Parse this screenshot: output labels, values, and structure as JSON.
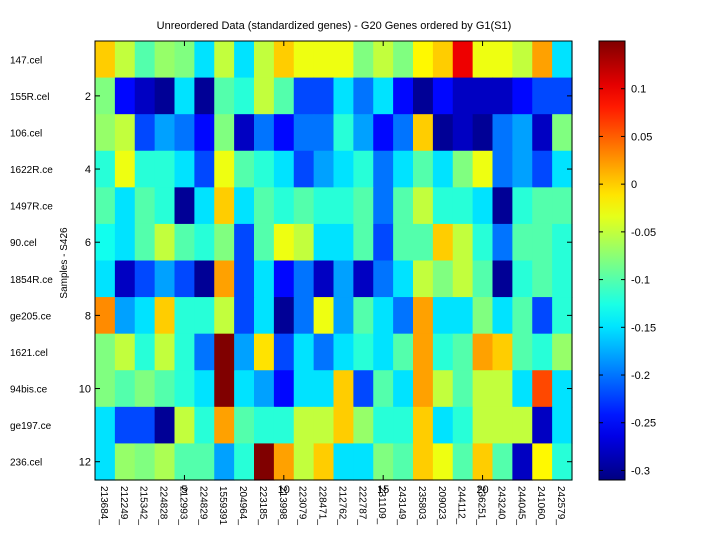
{
  "chart_data": {
    "type": "heatmap",
    "title": "Unreordered Data (standardized genes) - G20 Genes ordered by G1(S1)",
    "ylabel": "Samples - S426",
    "xlabel": "",
    "colormap": "jet",
    "clim": [
      -0.31,
      0.15
    ],
    "colorbar_ticks": [
      0.1,
      0.05,
      0,
      -0.05,
      -0.1,
      -0.15,
      -0.2,
      -0.25,
      -0.3
    ],
    "colorbar_tick_labels": [
      "0.1",
      "0.05",
      "0",
      "-0.05",
      "-0.1",
      "-0.15",
      "-0.2",
      "-0.25",
      "-0.3"
    ],
    "x_ticks": [
      5,
      10,
      15,
      20
    ],
    "x_tick_labels": [
      "5",
      "10",
      "15",
      "20"
    ],
    "y_ticks": [
      2,
      4,
      6,
      8,
      10,
      12
    ],
    "y_tick_labels": [
      "2",
      "4",
      "6",
      "8",
      "10",
      "12"
    ],
    "row_labels": [
      "147.cel",
      "155R.cel",
      "106.cel",
      "1622R.ce",
      "1497R.ce",
      "90.cel",
      "1854R.ce",
      "ge205.ce",
      "1621.cel",
      "94bis.ce",
      "ge197.ce",
      "236.cel"
    ],
    "column_labels": [
      "213684_",
      "212249_",
      "215342_",
      "224828_",
      "212993_",
      "224829_",
      "1559391",
      "204964_",
      "223185_",
      "213998_",
      "223079_",
      "228471_",
      "212762_",
      "222787_",
      "231109_",
      "243149_",
      "235803_",
      "209023_",
      "244112_",
      "236251_",
      "243240_",
      "244045_",
      "241060_",
      "242579_"
    ],
    "column_label_positions": [
      1,
      2,
      3,
      4,
      5,
      6,
      7,
      8,
      9,
      10,
      11,
      12,
      13,
      14,
      15,
      16,
      17,
      18,
      19,
      20,
      21,
      22,
      23,
      24
    ],
    "values": [
      [
        0.0,
        -0.05,
        -0.1,
        -0.07,
        -0.08,
        -0.15,
        -0.05,
        -0.15,
        -0.05,
        0.0,
        -0.03,
        -0.03,
        -0.03,
        -0.08,
        -0.05,
        -0.08,
        -0.02,
        0.0,
        0.1,
        -0.03,
        -0.03,
        -0.05,
        0.02,
        -0.15
      ],
      [
        -0.08,
        -0.25,
        -0.28,
        -0.3,
        -0.15,
        -0.3,
        -0.1,
        -0.12,
        -0.05,
        -0.1,
        -0.22,
        -0.22,
        -0.15,
        -0.2,
        -0.15,
        -0.25,
        -0.3,
        -0.25,
        -0.28,
        -0.28,
        -0.28,
        -0.25,
        -0.22,
        -0.22
      ],
      [
        -0.07,
        -0.05,
        -0.22,
        -0.18,
        -0.2,
        -0.25,
        -0.08,
        -0.28,
        -0.2,
        -0.25,
        -0.2,
        -0.2,
        -0.12,
        -0.18,
        -0.25,
        -0.2,
        0.0,
        -0.3,
        -0.28,
        -0.3,
        -0.2,
        -0.18,
        -0.28,
        -0.08
      ],
      [
        -0.12,
        -0.03,
        -0.12,
        -0.12,
        -0.15,
        -0.22,
        -0.03,
        -0.1,
        -0.12,
        -0.15,
        -0.22,
        -0.18,
        -0.15,
        -0.12,
        -0.2,
        -0.15,
        -0.1,
        -0.15,
        -0.08,
        -0.03,
        -0.2,
        -0.18,
        -0.22,
        -0.15
      ],
      [
        -0.1,
        -0.15,
        -0.1,
        -0.12,
        -0.3,
        -0.15,
        0.0,
        -0.15,
        -0.1,
        -0.12,
        -0.1,
        -0.12,
        -0.12,
        -0.1,
        -0.2,
        -0.1,
        -0.05,
        -0.12,
        -0.12,
        -0.15,
        -0.3,
        -0.12,
        -0.1,
        -0.1
      ],
      [
        -0.13,
        -0.15,
        -0.1,
        -0.05,
        -0.1,
        -0.12,
        -0.08,
        -0.22,
        -0.1,
        -0.03,
        -0.05,
        -0.15,
        -0.15,
        -0.1,
        -0.22,
        -0.1,
        -0.1,
        0.0,
        -0.05,
        -0.12,
        -0.2,
        -0.1,
        -0.1,
        -0.12
      ],
      [
        -0.15,
        -0.28,
        -0.22,
        -0.18,
        -0.22,
        -0.3,
        0.02,
        -0.22,
        -0.15,
        -0.25,
        -0.2,
        -0.28,
        -0.18,
        -0.28,
        -0.2,
        -0.15,
        -0.05,
        -0.08,
        -0.05,
        -0.1,
        -0.3,
        -0.12,
        -0.1,
        -0.12
      ],
      [
        0.03,
        -0.18,
        -0.15,
        0.0,
        -0.12,
        -0.12,
        -0.05,
        -0.22,
        -0.15,
        -0.3,
        -0.2,
        -0.03,
        -0.18,
        -0.1,
        -0.15,
        -0.2,
        0.02,
        -0.15,
        -0.15,
        -0.08,
        -0.15,
        -0.1,
        -0.22,
        -0.12
      ],
      [
        -0.08,
        -0.05,
        -0.12,
        -0.05,
        -0.12,
        -0.2,
        0.15,
        -0.18,
        -0.01,
        -0.22,
        -0.15,
        -0.2,
        -0.15,
        -0.12,
        -0.15,
        -0.1,
        0.02,
        -0.12,
        -0.1,
        0.02,
        0.0,
        -0.1,
        -0.12,
        -0.07
      ],
      [
        -0.08,
        -0.1,
        -0.08,
        -0.1,
        -0.12,
        -0.15,
        0.15,
        -0.15,
        -0.18,
        -0.25,
        -0.15,
        -0.15,
        0.0,
        -0.22,
        -0.1,
        -0.15,
        0.02,
        -0.05,
        -0.1,
        -0.05,
        -0.05,
        -0.15,
        0.06,
        -0.15
      ],
      [
        -0.15,
        -0.22,
        -0.22,
        -0.3,
        -0.05,
        -0.12,
        0.02,
        -0.1,
        -0.12,
        -0.12,
        -0.05,
        -0.05,
        0.0,
        -0.07,
        -0.12,
        -0.12,
        0.0,
        -0.15,
        -0.12,
        -0.05,
        -0.05,
        -0.05,
        -0.28,
        -0.15
      ],
      [
        -0.15,
        -0.07,
        -0.08,
        -0.06,
        -0.1,
        -0.1,
        -0.18,
        -0.12,
        0.15,
        0.02,
        -0.05,
        0.0,
        -0.15,
        -0.15,
        -0.08,
        -0.1,
        0.0,
        -0.03,
        -0.1,
        0.0,
        -0.1,
        -0.28,
        -0.02,
        -0.12
      ]
    ]
  }
}
